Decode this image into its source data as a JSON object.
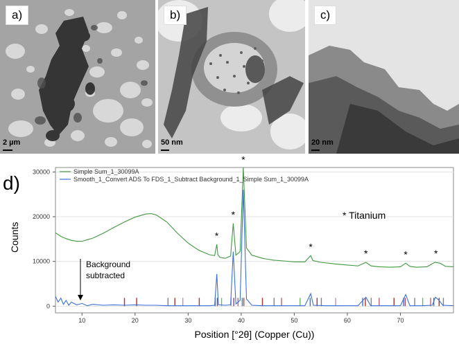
{
  "panels": [
    {
      "label": "a)",
      "scale": "2 µm"
    },
    {
      "label": "b)",
      "scale": "50 nm"
    },
    {
      "label": "c)",
      "scale": "20 nm"
    }
  ],
  "chart_label": "d)",
  "annotation_titanium": "* Titanium",
  "annotation_bg_line1": "Background",
  "annotation_bg_line2": "subtracted",
  "chart_data": {
    "type": "line",
    "xlabel": "Position [°2θ] (Copper (Cu))",
    "ylabel": "Counts",
    "xlim": [
      5,
      80
    ],
    "ylim": [
      -1500,
      31000
    ],
    "x_ticks": [
      10,
      20,
      30,
      40,
      50,
      60,
      70
    ],
    "y_ticks": [
      0,
      10000,
      20000,
      30000
    ],
    "legend": [
      "Simple Sum_1_30099A",
      "Smooth_1_Convert ADS To FDS_1_Subtract Background_1_Simple Sum_1_30099A"
    ],
    "series": [
      {
        "name": "Simple Sum_1_30099A",
        "color": "#3f9a3f",
        "points": [
          [
            5,
            16400
          ],
          [
            6,
            15600
          ],
          [
            7,
            15100
          ],
          [
            8,
            14700
          ],
          [
            9,
            14500
          ],
          [
            10,
            14500
          ],
          [
            12,
            15200
          ],
          [
            14,
            16300
          ],
          [
            16,
            17600
          ],
          [
            18,
            18800
          ],
          [
            20,
            19900
          ],
          [
            22,
            20600
          ],
          [
            23,
            20700
          ],
          [
            24,
            20400
          ],
          [
            26,
            18800
          ],
          [
            28,
            16300
          ],
          [
            30,
            14100
          ],
          [
            32,
            12500
          ],
          [
            34,
            11500
          ],
          [
            35,
            11300
          ],
          [
            35.4,
            13800
          ],
          [
            35.6,
            11500
          ],
          [
            36,
            10900
          ],
          [
            37,
            10700
          ],
          [
            38,
            11200
          ],
          [
            38.5,
            18500
          ],
          [
            39,
            11400
          ],
          [
            39.8,
            12200
          ],
          [
            40.4,
            31000
          ],
          [
            41,
            13000
          ],
          [
            42,
            11400
          ],
          [
            44,
            10700
          ],
          [
            46,
            10300
          ],
          [
            48,
            10100
          ],
          [
            50,
            9900
          ],
          [
            52,
            9900
          ],
          [
            53.1,
            11300
          ],
          [
            53.5,
            10200
          ],
          [
            55,
            9800
          ],
          [
            58,
            9400
          ],
          [
            60,
            9200
          ],
          [
            62,
            9000
          ],
          [
            63.5,
            9800
          ],
          [
            64.5,
            9000
          ],
          [
            66,
            8800
          ],
          [
            68,
            8700
          ],
          [
            70,
            8800
          ],
          [
            71,
            9600
          ],
          [
            71.8,
            8900
          ],
          [
            73,
            8700
          ],
          [
            75,
            8800
          ],
          [
            76.5,
            9800
          ],
          [
            77.5,
            9600
          ],
          [
            78.5,
            8900
          ],
          [
            80,
            8800
          ]
        ]
      },
      {
        "name": "Smooth_1_Convert ADS To FDS_1_Subtract Background_1_Simple Sum_1_30099A",
        "color": "#3a6fd8",
        "points": [
          [
            5,
            2200
          ],
          [
            5.5,
            900
          ],
          [
            6,
            1800
          ],
          [
            6.5,
            400
          ],
          [
            7,
            1300
          ],
          [
            7.5,
            200
          ],
          [
            8,
            900
          ],
          [
            9,
            300
          ],
          [
            10,
            600
          ],
          [
            11,
            100
          ],
          [
            12,
            400
          ],
          [
            14,
            200
          ],
          [
            16,
            300
          ],
          [
            18,
            200
          ],
          [
            20,
            300
          ],
          [
            22,
            200
          ],
          [
            24,
            200
          ],
          [
            26,
            100
          ],
          [
            28,
            100
          ],
          [
            30,
            100
          ],
          [
            32,
            100
          ],
          [
            34,
            100
          ],
          [
            35,
            200
          ],
          [
            35.4,
            7200
          ],
          [
            35.7,
            300
          ],
          [
            37,
            200
          ],
          [
            38,
            300
          ],
          [
            38.5,
            12200
          ],
          [
            39,
            500
          ],
          [
            39.8,
            1300
          ],
          [
            40.4,
            26000
          ],
          [
            41,
            1600
          ],
          [
            42,
            200
          ],
          [
            44,
            100
          ],
          [
            46,
            100
          ],
          [
            48,
            100
          ],
          [
            50,
            100
          ],
          [
            52,
            100
          ],
          [
            53.1,
            2800
          ],
          [
            53.6,
            200
          ],
          [
            56,
            100
          ],
          [
            60,
            100
          ],
          [
            62,
            100
          ],
          [
            63.5,
            2000
          ],
          [
            64.4,
            100
          ],
          [
            66,
            100
          ],
          [
            68,
            100
          ],
          [
            70,
            100
          ],
          [
            71,
            2600
          ],
          [
            71.8,
            100
          ],
          [
            74,
            100
          ],
          [
            76,
            200
          ],
          [
            76.6,
            2000
          ],
          [
            77.2,
            1400
          ],
          [
            78,
            200
          ],
          [
            80,
            100
          ]
        ]
      }
    ],
    "star_positions": [
      [
        35.4,
        15000
      ],
      [
        38.5,
        19700
      ],
      [
        40.4,
        32000
      ],
      [
        53.1,
        12500
      ],
      [
        63.5,
        11000
      ],
      [
        71,
        10800
      ],
      [
        76.7,
        11000
      ]
    ],
    "reference_peaks": [
      [
        18,
        "#b03030"
      ],
      [
        20.3,
        "#b03030"
      ],
      [
        26.2,
        "#808080"
      ],
      [
        27.5,
        "#b03030"
      ],
      [
        29,
        "#c090c0"
      ],
      [
        32.1,
        "#b03030"
      ],
      [
        35.1,
        "#3a6fd8"
      ],
      [
        35.5,
        "#c04040"
      ],
      [
        36.3,
        "#60c060"
      ],
      [
        38.1,
        "#a0a0a0"
      ],
      [
        38.6,
        "#8040a0"
      ],
      [
        39.4,
        "#c06060"
      ],
      [
        40.2,
        "#3a6fd8"
      ],
      [
        40.5,
        "#c04040"
      ],
      [
        44,
        "#b03030"
      ],
      [
        46.2,
        "#808080"
      ],
      [
        47.6,
        "#c06060"
      ],
      [
        51.1,
        "#60c060"
      ],
      [
        53.0,
        "#3a6fd8"
      ],
      [
        54.3,
        "#b03030"
      ],
      [
        55.1,
        "#808080"
      ],
      [
        57.8,
        "#c090c0"
      ],
      [
        62.9,
        "#3a6fd8"
      ],
      [
        63.4,
        "#b03030"
      ],
      [
        64.5,
        "#808080"
      ],
      [
        66,
        "#c06060"
      ],
      [
        68.8,
        "#b03030"
      ],
      [
        70.6,
        "#3a6fd8"
      ],
      [
        70.9,
        "#c04040"
      ],
      [
        72.7,
        "#808080"
      ],
      [
        74.2,
        "#60c060"
      ],
      [
        75.7,
        "#c06060"
      ],
      [
        76.3,
        "#3a6fd8"
      ],
      [
        77.3,
        "#b03030"
      ],
      [
        78.1,
        "#808080"
      ]
    ]
  }
}
